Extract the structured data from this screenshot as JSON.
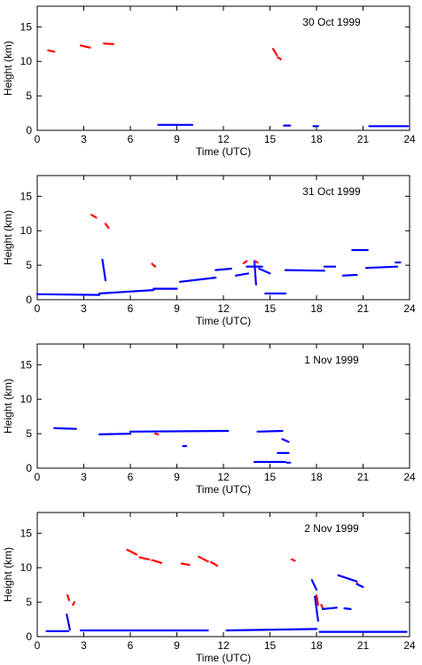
{
  "chart_data": [
    {
      "type": "scatter",
      "title": "30 Oct 1999",
      "xlabel": "Time (UTC)",
      "ylabel": "Height (km)",
      "xlim": [
        0,
        24
      ],
      "ylim": [
        0,
        18
      ],
      "xticks": [
        0,
        3,
        6,
        9,
        12,
        15,
        18,
        21,
        24
      ],
      "yticks": [
        0,
        5,
        10,
        15
      ],
      "grid": false,
      "series": [
        {
          "color": "#ff0000",
          "segments": [
            {
              "x": [
                0.7,
                1.1
              ],
              "y": [
                11.6,
                11.4
              ]
            },
            {
              "x": [
                2.8,
                3.4
              ],
              "y": [
                12.3,
                12.0
              ]
            },
            {
              "x": [
                4.3,
                4.9
              ],
              "y": [
                12.6,
                12.5
              ]
            },
            {
              "x": [
                15.2,
                15.45
              ],
              "y": [
                11.8,
                10.9
              ]
            },
            {
              "x": [
                15.5,
                15.7
              ],
              "y": [
                10.6,
                10.3
              ]
            }
          ]
        },
        {
          "color": "#0000ff",
          "segments": [
            {
              "x": [
                7.8,
                10.0
              ],
              "y": [
                0.8,
                0.8
              ]
            },
            {
              "x": [
                15.9,
                16.3
              ],
              "y": [
                0.7,
                0.7
              ]
            },
            {
              "x": [
                17.8,
                18.1
              ],
              "y": [
                0.6,
                0.6
              ]
            },
            {
              "x": [
                21.4,
                23.9
              ],
              "y": [
                0.6,
                0.6
              ]
            }
          ]
        }
      ]
    },
    {
      "type": "scatter",
      "title": "31 Oct 1999",
      "xlabel": "Time (UTC)",
      "ylabel": "Height (km)",
      "xlim": [
        0,
        24
      ],
      "ylim": [
        0,
        18
      ],
      "xticks": [
        0,
        3,
        6,
        9,
        12,
        15,
        18,
        21,
        24
      ],
      "yticks": [
        0,
        5,
        10,
        15
      ],
      "grid": false,
      "series": [
        {
          "color": "#ff0000",
          "segments": [
            {
              "x": [
                3.5,
                3.8
              ],
              "y": [
                12.3,
                11.9
              ]
            },
            {
              "x": [
                4.4,
                4.6
              ],
              "y": [
                11.0,
                10.4
              ]
            },
            {
              "x": [
                7.4,
                7.6
              ],
              "y": [
                5.2,
                4.8
              ]
            },
            {
              "x": [
                13.3,
                13.5
              ],
              "y": [
                5.3,
                5.6
              ]
            },
            {
              "x": [
                14.0,
                14.2
              ],
              "y": [
                5.6,
                5.4
              ]
            }
          ]
        },
        {
          "color": "#0000ff",
          "segments": [
            {
              "x": [
                0.0,
                4.0
              ],
              "y": [
                0.8,
                0.7
              ]
            },
            {
              "x": [
                4.0,
                7.5
              ],
              "y": [
                0.9,
                1.4
              ]
            },
            {
              "x": [
                7.5,
                9.0
              ],
              "y": [
                1.6,
                1.6
              ]
            },
            {
              "x": [
                4.2,
                4.4
              ],
              "y": [
                5.8,
                2.8
              ]
            },
            {
              "x": [
                9.2,
                11.5
              ],
              "y": [
                2.6,
                3.2
              ]
            },
            {
              "x": [
                11.5,
                12.5
              ],
              "y": [
                4.3,
                4.5
              ]
            },
            {
              "x": [
                12.8,
                13.6
              ],
              "y": [
                3.5,
                3.8
              ]
            },
            {
              "x": [
                13.5,
                14.5
              ],
              "y": [
                4.8,
                4.8
              ]
            },
            {
              "x": [
                14.0,
                14.1
              ],
              "y": [
                5.5,
                2.2
              ]
            },
            {
              "x": [
                14.3,
                15.0
              ],
              "y": [
                4.5,
                3.8
              ]
            },
            {
              "x": [
                14.7,
                16.0
              ],
              "y": [
                0.9,
                0.9
              ]
            },
            {
              "x": [
                16.0,
                18.5
              ],
              "y": [
                4.3,
                4.2
              ]
            },
            {
              "x": [
                18.5,
                19.2
              ],
              "y": [
                4.8,
                4.8
              ]
            },
            {
              "x": [
                19.7,
                20.6
              ],
              "y": [
                3.5,
                3.6
              ]
            },
            {
              "x": [
                20.3,
                21.3
              ],
              "y": [
                7.2,
                7.2
              ]
            },
            {
              "x": [
                21.2,
                23.2
              ],
              "y": [
                4.6,
                4.8
              ]
            },
            {
              "x": [
                23.1,
                23.4
              ],
              "y": [
                5.4,
                5.4
              ]
            }
          ]
        }
      ]
    },
    {
      "type": "scatter",
      "title": "1 Nov 1999",
      "xlabel": "Time (UTC)",
      "ylabel": "Height (km)",
      "xlim": [
        0,
        24
      ],
      "ylim": [
        0,
        18
      ],
      "xticks": [
        0,
        3,
        6,
        9,
        12,
        15,
        18,
        21,
        24
      ],
      "yticks": [
        0,
        5,
        10,
        15
      ],
      "grid": false,
      "series": [
        {
          "color": "#ff0000",
          "segments": [
            {
              "x": [
                7.6,
                7.8
              ],
              "y": [
                5.0,
                4.9
              ]
            }
          ]
        },
        {
          "color": "#0000ff",
          "segments": [
            {
              "x": [
                1.1,
                2.5
              ],
              "y": [
                5.8,
                5.7
              ]
            },
            {
              "x": [
                4.0,
                6.0
              ],
              "y": [
                4.9,
                5.0
              ]
            },
            {
              "x": [
                6.0,
                12.3
              ],
              "y": [
                5.3,
                5.4
              ]
            },
            {
              "x": [
                9.4,
                9.6
              ],
              "y": [
                3.2,
                3.2
              ]
            },
            {
              "x": [
                14.2,
                15.8
              ],
              "y": [
                5.3,
                5.4
              ]
            },
            {
              "x": [
                15.5,
                16.2
              ],
              "y": [
                2.2,
                2.2
              ]
            },
            {
              "x": [
                15.8,
                16.2
              ],
              "y": [
                4.2,
                3.8
              ]
            },
            {
              "x": [
                14.0,
                16.0
              ],
              "y": [
                0.9,
                0.9
              ]
            },
            {
              "x": [
                16.1,
                16.3
              ],
              "y": [
                0.8,
                0.8
              ]
            }
          ]
        }
      ]
    },
    {
      "type": "scatter",
      "title": "2 Nov 1999",
      "xlabel": "Time (UTC)",
      "ylabel": "Height (km)",
      "xlim": [
        0,
        24
      ],
      "ylim": [
        0,
        18
      ],
      "xticks": [
        0,
        3,
        6,
        9,
        12,
        15,
        18,
        21,
        24
      ],
      "yticks": [
        0,
        5,
        10,
        15
      ],
      "grid": false,
      "series": [
        {
          "color": "#ff0000",
          "segments": [
            {
              "x": [
                1.95,
                2.05
              ],
              "y": [
                6.0,
                5.3
              ]
            },
            {
              "x": [
                2.3,
                2.4
              ],
              "y": [
                4.6,
                5.0
              ]
            },
            {
              "x": [
                5.8,
                6.4
              ],
              "y": [
                12.6,
                11.9
              ]
            },
            {
              "x": [
                6.6,
                7.2
              ],
              "y": [
                11.5,
                11.2
              ]
            },
            {
              "x": [
                7.4,
                8.0
              ],
              "y": [
                11.1,
                10.7
              ]
            },
            {
              "x": [
                9.3,
                9.8
              ],
              "y": [
                10.6,
                10.4
              ]
            },
            {
              "x": [
                10.4,
                11.0
              ],
              "y": [
                11.6,
                10.9
              ]
            },
            {
              "x": [
                11.2,
                11.6
              ],
              "y": [
                10.8,
                10.3
              ]
            },
            {
              "x": [
                16.4,
                16.6
              ],
              "y": [
                11.2,
                11.0
              ]
            },
            {
              "x": [
                18.0,
                18.1
              ],
              "y": [
                6.0,
                4.6
              ]
            },
            {
              "x": [
                18.3,
                18.4
              ],
              "y": [
                4.6,
                4.2
              ]
            },
            {
              "x": [
                20.6,
                20.8
              ],
              "y": [
                7.7,
                7.4
              ]
            }
          ]
        },
        {
          "color": "#0000ff",
          "segments": [
            {
              "x": [
                0.6,
                2.0
              ],
              "y": [
                0.8,
                0.8
              ]
            },
            {
              "x": [
                1.9,
                2.1
              ],
              "y": [
                3.2,
                1.0
              ]
            },
            {
              "x": [
                2.8,
                11.0
              ],
              "y": [
                0.9,
                0.9
              ]
            },
            {
              "x": [
                12.2,
                18.0
              ],
              "y": [
                0.9,
                1.1
              ]
            },
            {
              "x": [
                17.7,
                18.0
              ],
              "y": [
                8.2,
                6.8
              ]
            },
            {
              "x": [
                17.9,
                18.1
              ],
              "y": [
                5.8,
                2.3
              ]
            },
            {
              "x": [
                18.4,
                19.3
              ],
              "y": [
                4.0,
                4.2
              ]
            },
            {
              "x": [
                19.4,
                20.6
              ],
              "y": [
                8.9,
                8.0
              ]
            },
            {
              "x": [
                20.6,
                21.0
              ],
              "y": [
                7.6,
                7.2
              ]
            },
            {
              "x": [
                19.8,
                20.2
              ],
              "y": [
                4.1,
                4.0
              ]
            },
            {
              "x": [
                18.2,
                23.8
              ],
              "y": [
                0.7,
                0.7
              ]
            }
          ]
        }
      ]
    }
  ]
}
